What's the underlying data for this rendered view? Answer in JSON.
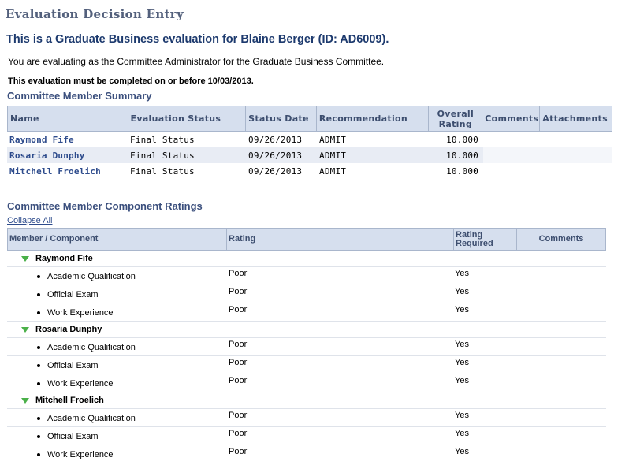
{
  "page": {
    "title": "Evaluation Decision Entry",
    "subheading": "This is a Graduate Business evaluation for Blaine Berger (ID: AD6009).",
    "intro": "You are evaluating as the Committee Administrator for the Graduate Business Committee.",
    "deadline": "This evaluation must be completed on or before 10/03/2013."
  },
  "summary": {
    "title": "Committee Member Summary",
    "headers": {
      "name": "Name",
      "status": "Evaluation Status",
      "date": "Status Date",
      "recommendation": "Recommendation",
      "rating_line1": "Overall",
      "rating_line2": "Rating",
      "comments": "Comments",
      "attachments": "Attachments"
    },
    "rows": [
      {
        "name": "Raymond Fife",
        "status": "Final Status",
        "date": "09/26/2013",
        "recommendation": "ADMIT",
        "rating": "10.000"
      },
      {
        "name": "Rosaria Dunphy",
        "status": "Final Status",
        "date": "09/26/2013",
        "recommendation": "ADMIT",
        "rating": "10.000"
      },
      {
        "name": "Mitchell Froelich",
        "status": "Final Status",
        "date": "09/26/2013",
        "recommendation": "ADMIT",
        "rating": "10.000"
      }
    ]
  },
  "components": {
    "title": "Committee Member Component Ratings",
    "collapse_label": "Collapse All",
    "headers": {
      "member": "Member / Component",
      "rating": "Rating",
      "req_line1": "Rating",
      "req_line2": "Required",
      "comments": "Comments"
    },
    "groups": [
      {
        "member": "Raymond Fife",
        "items": [
          {
            "label": "Academic Qualification",
            "rating": "Poor",
            "required": "Yes"
          },
          {
            "label": "Official Exam",
            "rating": "Poor",
            "required": "Yes"
          },
          {
            "label": "Work Experience",
            "rating": "Poor",
            "required": "Yes"
          }
        ]
      },
      {
        "member": "Rosaria Dunphy",
        "items": [
          {
            "label": "Academic Qualification",
            "rating": "Poor",
            "required": "Yes"
          },
          {
            "label": "Official Exam",
            "rating": "Poor",
            "required": "Yes"
          },
          {
            "label": "Work Experience",
            "rating": "Poor",
            "required": "Yes"
          }
        ]
      },
      {
        "member": "Mitchell Froelich",
        "items": [
          {
            "label": "Academic Qualification",
            "rating": "Poor",
            "required": "Yes"
          },
          {
            "label": "Official Exam",
            "rating": "Poor",
            "required": "Yes"
          },
          {
            "label": "Work Experience",
            "rating": "Poor",
            "required": "Yes"
          }
        ]
      }
    ]
  }
}
